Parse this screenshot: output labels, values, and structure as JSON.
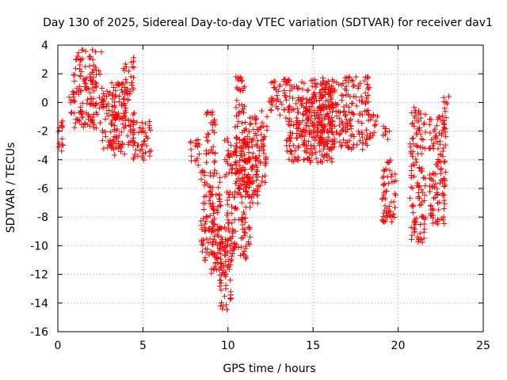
{
  "chart_data": {
    "type": "scatter",
    "title": "Day 130 of 2025, Sidereal Day-to-day VTEC variation (SDTVAR) for receiver dav1",
    "xlabel": "GPS time / hours",
    "ylabel": "SDTVAR / TECUs",
    "xlim": [
      0,
      25
    ],
    "ylim": [
      -16,
      4
    ],
    "x_ticks": [
      0,
      5,
      10,
      15,
      20,
      25
    ],
    "y_ticks": [
      -16,
      -14,
      -12,
      -10,
      -8,
      -6,
      -4,
      -2,
      0,
      2,
      4
    ],
    "grid": true,
    "marker": "plus",
    "colors": {
      "series": "#ff0000",
      "grid": "#a0a0a0",
      "axes": "#000000"
    },
    "clusters": [
      {
        "name": "c1",
        "x": [
          0.0,
          0.35
        ],
        "y": [
          -3.4,
          -0.8
        ]
      },
      {
        "name": "c2",
        "x": [
          0.6,
          1.0
        ],
        "y": [
          -1.0,
          1.0
        ]
      },
      {
        "name": "c3",
        "x": [
          0.9,
          2.6
        ],
        "y": [
          -1.8,
          3.7
        ]
      },
      {
        "name": "c4",
        "x": [
          2.6,
          3.5
        ],
        "y": [
          -3.3,
          0.8
        ]
      },
      {
        "name": "c5",
        "x": [
          3.0,
          4.0
        ],
        "y": [
          -3.8,
          1.4
        ]
      },
      {
        "name": "c6",
        "x": [
          3.8,
          4.5
        ],
        "y": [
          -3.0,
          3.2
        ]
      },
      {
        "name": "c7",
        "x": [
          4.4,
          5.5
        ],
        "y": [
          -4.2,
          -1.3
        ]
      },
      {
        "name": "c8",
        "x": [
          7.8,
          8.4
        ],
        "y": [
          -4.6,
          -2.6
        ]
      },
      {
        "name": "c9",
        "x": [
          8.4,
          9.6
        ],
        "y": [
          -11.2,
          -4.6
        ]
      },
      {
        "name": "c10",
        "x": [
          9.0,
          9.9
        ],
        "y": [
          -12.2,
          -8.5
        ]
      },
      {
        "name": "c11",
        "x": [
          9.5,
          10.2
        ],
        "y": [
          -14.6,
          -10.0
        ]
      },
      {
        "name": "c12",
        "x": [
          8.7,
          9.3
        ],
        "y": [
          -4.4,
          -0.6
        ]
      },
      {
        "name": "c13",
        "x": [
          9.8,
          11.3
        ],
        "y": [
          -11.0,
          -2.5
        ]
      },
      {
        "name": "c14",
        "x": [
          10.4,
          11.0
        ],
        "y": [
          -5.2,
          1.8
        ]
      },
      {
        "name": "c15",
        "x": [
          11.0,
          11.8
        ],
        "y": [
          -7.4,
          -0.8
        ]
      },
      {
        "name": "c16",
        "x": [
          11.6,
          12.3
        ],
        "y": [
          -5.8,
          -0.5
        ]
      },
      {
        "name": "c17",
        "x": [
          12.4,
          13.6
        ],
        "y": [
          -0.9,
          1.7
        ]
      },
      {
        "name": "c18",
        "x": [
          13.4,
          16.2
        ],
        "y": [
          -4.2,
          1.6
        ]
      },
      {
        "name": "c19",
        "x": [
          14.0,
          15.6
        ],
        "y": [
          -2.8,
          0.6
        ]
      },
      {
        "name": "c20",
        "x": [
          15.4,
          18.3
        ],
        "y": [
          -3.3,
          1.8
        ]
      },
      {
        "name": "c21",
        "x": [
          18.2,
          18.8
        ],
        "y": [
          -2.5,
          -0.6
        ]
      },
      {
        "name": "c22",
        "x": [
          19.0,
          19.9
        ],
        "y": [
          -8.5,
          -4.0
        ]
      },
      {
        "name": "c23",
        "x": [
          19.1,
          19.5
        ],
        "y": [
          -2.8,
          -1.5
        ]
      },
      {
        "name": "c24",
        "x": [
          20.7,
          21.6
        ],
        "y": [
          -9.8,
          -0.3
        ]
      },
      {
        "name": "c25",
        "x": [
          21.8,
          22.8
        ],
        "y": [
          -8.5,
          -0.8
        ]
      },
      {
        "name": "c26",
        "x": [
          22.6,
          23.0
        ],
        "y": [
          -2.0,
          0.5
        ]
      }
    ]
  }
}
